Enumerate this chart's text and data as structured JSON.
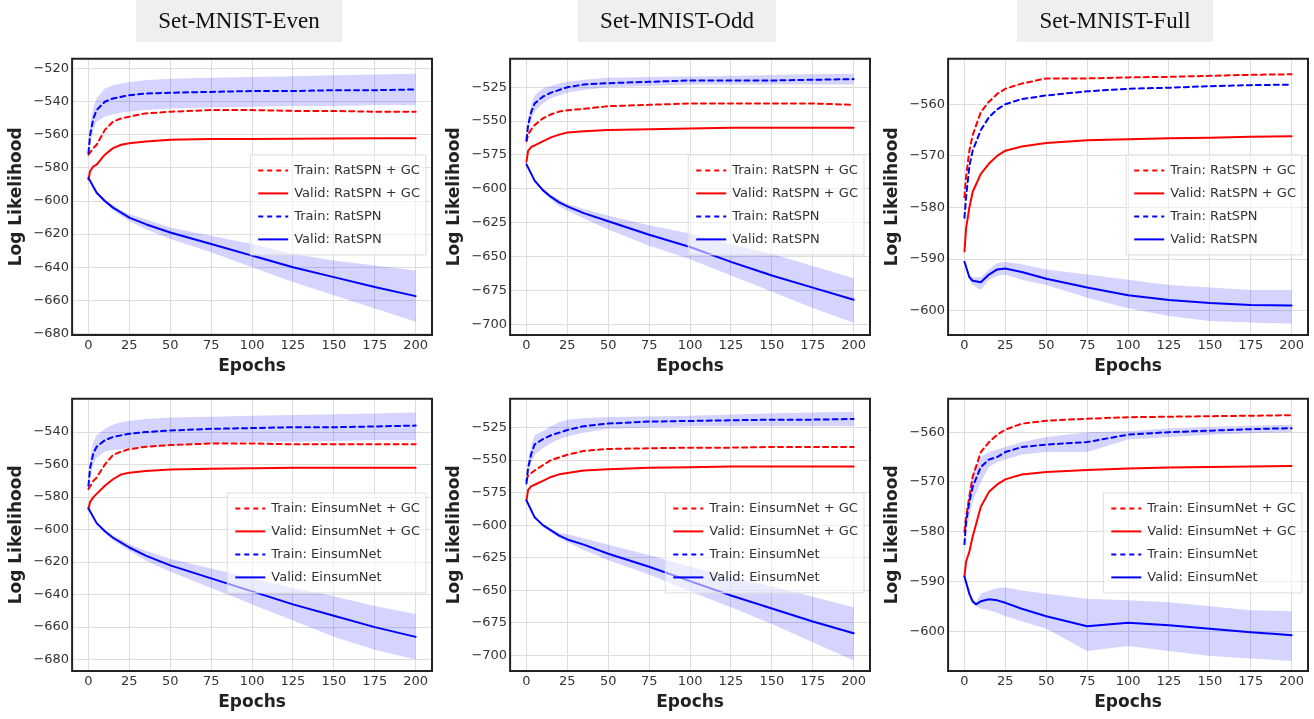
{
  "chart_data": [
    {
      "type": "line",
      "title": "Set-MNIST-Even",
      "xlabel": "Epochs",
      "ylabel": "Log Likelihood",
      "xlim": [
        -10,
        210
      ],
      "ylim": [
        -681,
        -514
      ],
      "xticks": [
        0,
        25,
        50,
        75,
        100,
        125,
        150,
        175,
        200
      ],
      "yticks": [
        -680,
        -660,
        -640,
        -620,
        -600,
        -580,
        -560,
        -540,
        -520
      ],
      "grid": true,
      "legend": "right",
      "series": [
        {
          "name": "Train: RatSPN + GC",
          "color": "#ff0000",
          "line_style": "dashed",
          "x": [
            0,
            3,
            5,
            10,
            15,
            20,
            25,
            35,
            50,
            75,
            100,
            125,
            150,
            175,
            200
          ],
          "values": [
            -572,
            -568,
            -566,
            -557,
            -552,
            -550,
            -549,
            -547,
            -546,
            -545,
            -545,
            -545.5,
            -545.5,
            -546,
            -546
          ]
        },
        {
          "name": "Valid: RatSPN + GC",
          "color": "#ff0000",
          "line_style": "solid",
          "x": [
            0,
            1,
            3,
            5,
            10,
            15,
            20,
            25,
            35,
            50,
            75,
            100,
            125,
            150,
            175,
            200
          ],
          "values": [
            -587,
            -582,
            -579,
            -578,
            -572,
            -568,
            -566,
            -565,
            -564,
            -563,
            -562.5,
            -562.5,
            -562.3,
            -562.2,
            -562,
            -562
          ]
        },
        {
          "name": "Train: RatSPN",
          "color": "#0000ff",
          "line_style": "dashed",
          "x": [
            0,
            1,
            3,
            5,
            10,
            15,
            20,
            25,
            35,
            50,
            75,
            100,
            125,
            150,
            175,
            200
          ],
          "values": [
            -571,
            -560,
            -550,
            -545,
            -540,
            -538,
            -537,
            -536,
            -535,
            -534.5,
            -534,
            -533.5,
            -533.5,
            -533,
            -533,
            -532.5
          ],
          "lower": [
            -573,
            -566,
            -557,
            -552,
            -549,
            -547.5,
            -546.5,
            -546,
            -545,
            -544,
            -543.5,
            -543,
            -542.5,
            -542.5,
            -542,
            -542
          ],
          "upper": [
            -569,
            -554,
            -543,
            -538,
            -532,
            -530,
            -529,
            -528,
            -527,
            -526,
            -525.5,
            -525,
            -524.5,
            -524,
            -523.5,
            -523
          ]
        },
        {
          "name": "Valid: RatSPN",
          "color": "#0000ff",
          "line_style": "solid",
          "x": [
            0,
            5,
            10,
            15,
            20,
            25,
            35,
            50,
            75,
            100,
            125,
            150,
            175,
            200
          ],
          "values": [
            -586,
            -595,
            -600,
            -604,
            -607,
            -610,
            -614,
            -619,
            -626,
            -633,
            -640,
            -646,
            -652,
            -657.5
          ],
          "lower": [
            -586.5,
            -595.5,
            -601,
            -605.5,
            -609,
            -612,
            -617,
            -623,
            -631,
            -640,
            -649,
            -657,
            -665,
            -673
          ],
          "upper": [
            -585.5,
            -594.5,
            -599,
            -602.5,
            -605.5,
            -608,
            -611,
            -616,
            -621,
            -626,
            -632,
            -636,
            -639,
            -642
          ]
        }
      ]
    },
    {
      "type": "line",
      "title": "Set-MNIST-Odd",
      "xlabel": "Epochs",
      "ylabel": "Log Likelihood",
      "xlim": [
        -10,
        210
      ],
      "ylim": [
        -708,
        -504
      ],
      "xticks": [
        0,
        25,
        50,
        75,
        100,
        125,
        150,
        175,
        200
      ],
      "yticks": [
        -700,
        -675,
        -650,
        -625,
        -600,
        -575,
        -550,
        -525
      ],
      "grid": true,
      "legend": "right",
      "series": [
        {
          "name": "Train: RatSPN + GC",
          "color": "#ff0000",
          "line_style": "dashed",
          "x": [
            0,
            1,
            3,
            5,
            10,
            15,
            20,
            25,
            35,
            50,
            75,
            100,
            125,
            150,
            175,
            200
          ],
          "values": [
            -565,
            -560,
            -556,
            -553,
            -548,
            -545,
            -543,
            -542,
            -541,
            -539,
            -538,
            -537,
            -537,
            -537,
            -537,
            -538
          ]
        },
        {
          "name": "Valid: RatSPN + GC",
          "color": "#ff0000",
          "line_style": "solid",
          "x": [
            0,
            1,
            3,
            5,
            10,
            15,
            20,
            25,
            35,
            50,
            75,
            100,
            125,
            150,
            175,
            200
          ],
          "values": [
            -580,
            -572,
            -569,
            -568,
            -565,
            -562,
            -560,
            -558.5,
            -557.5,
            -556.5,
            -556,
            -555.5,
            -555,
            -555,
            -555,
            -555
          ]
        },
        {
          "name": "Train: RatSPN",
          "color": "#0000ff",
          "line_style": "dashed",
          "x": [
            0,
            1,
            3,
            5,
            10,
            15,
            20,
            25,
            35,
            50,
            75,
            100,
            125,
            150,
            175,
            200
          ],
          "values": [
            -564,
            -553,
            -543,
            -537,
            -532,
            -529,
            -527,
            -525,
            -523,
            -522,
            -521,
            -520,
            -520,
            -520,
            -519.5,
            -519
          ],
          "lower": [
            -566,
            -558,
            -549,
            -543,
            -537,
            -533,
            -531,
            -529,
            -527,
            -525,
            -524,
            -523,
            -523,
            -523,
            -523,
            -523
          ],
          "upper": [
            -562,
            -548,
            -537,
            -531,
            -526,
            -524,
            -522,
            -521,
            -519.5,
            -518,
            -517.5,
            -517,
            -516.5,
            -516,
            -515.5,
            -515
          ]
        },
        {
          "name": "Valid: RatSPN",
          "color": "#0000ff",
          "line_style": "solid",
          "x": [
            0,
            5,
            10,
            15,
            20,
            25,
            35,
            50,
            75,
            100,
            125,
            150,
            175,
            200
          ],
          "values": [
            -582,
            -594,
            -601,
            -606,
            -610,
            -613,
            -618,
            -624,
            -634,
            -643,
            -654,
            -664,
            -673,
            -682
          ],
          "lower": [
            -582.5,
            -595,
            -602,
            -608,
            -613,
            -616,
            -622,
            -630,
            -642,
            -652,
            -664,
            -676,
            -688,
            -699
          ],
          "upper": [
            -581.5,
            -593,
            -600,
            -604.5,
            -608,
            -611,
            -615,
            -620,
            -627,
            -633,
            -641,
            -648,
            -657,
            -666
          ]
        }
      ]
    },
    {
      "type": "line",
      "title": "Set-MNIST-Full",
      "xlabel": "Epochs",
      "ylabel": "Log Likelihood",
      "xlim": [
        -10,
        210
      ],
      "ylim": [
        -604.7,
        -551.2
      ],
      "xticks": [
        0,
        25,
        50,
        75,
        100,
        125,
        150,
        175,
        200
      ],
      "yticks": [
        -600,
        -590,
        -580,
        -570,
        -560
      ],
      "grid": true,
      "legend": "right",
      "series": [
        {
          "name": "Train: RatSPN + GC",
          "color": "#ff0000",
          "line_style": "dashed",
          "x": [
            0,
            1,
            3,
            5,
            10,
            15,
            20,
            25,
            35,
            50,
            75,
            100,
            125,
            150,
            175,
            200
          ],
          "values": [
            -578,
            -574,
            -569,
            -566,
            -561.5,
            -559.5,
            -558,
            -557,
            -556,
            -555,
            -555,
            -554.8,
            -554.7,
            -554.5,
            -554.3,
            -554.2
          ]
        },
        {
          "name": "Valid: RatSPN + GC",
          "color": "#ff0000",
          "line_style": "solid",
          "x": [
            0,
            1,
            3,
            5,
            10,
            15,
            20,
            25,
            35,
            50,
            75,
            100,
            125,
            150,
            175,
            200
          ],
          "values": [
            -588.5,
            -584,
            -580,
            -577,
            -573.5,
            -571.5,
            -570,
            -569,
            -568.2,
            -567.5,
            -567,
            -566.8,
            -566.6,
            -566.5,
            -566.3,
            -566.2
          ]
        },
        {
          "name": "Train: RatSPN",
          "color": "#0000ff",
          "line_style": "dashed",
          "x": [
            0,
            1,
            3,
            5,
            10,
            15,
            20,
            25,
            35,
            50,
            75,
            100,
            125,
            150,
            175,
            200
          ],
          "values": [
            -582,
            -578,
            -572,
            -569,
            -565,
            -562.5,
            -561,
            -560,
            -559,
            -558.3,
            -557.5,
            -557,
            -556.8,
            -556.5,
            -556.3,
            -556.2
          ]
        },
        {
          "name": "Valid: RatSPN",
          "color": "#0000ff",
          "line_style": "solid",
          "x": [
            0,
            3,
            5,
            10,
            15,
            20,
            25,
            35,
            50,
            75,
            100,
            125,
            150,
            175,
            200
          ],
          "values": [
            -590.5,
            -593.5,
            -594.2,
            -594.5,
            -593,
            -592,
            -591.8,
            -592.5,
            -593.8,
            -595.5,
            -597,
            -597.9,
            -598.5,
            -598.9,
            -599
          ],
          "lower": [
            -590.5,
            -594.2,
            -595,
            -596,
            -594,
            -593.2,
            -593,
            -594,
            -595,
            -597.5,
            -599.5,
            -601,
            -602,
            -602.3,
            -602.5
          ],
          "upper": [
            -590.5,
            -593,
            -593.5,
            -593.5,
            -592,
            -590.8,
            -590.5,
            -591,
            -592,
            -593,
            -594,
            -595,
            -595.5,
            -596,
            -596
          ]
        }
      ]
    },
    {
      "type": "line",
      "xlabel": "Epochs",
      "ylabel": "Log Likelihood",
      "xlim": [
        -10,
        210
      ],
      "ylim": [
        -687,
        -519.5
      ],
      "xticks": [
        0,
        25,
        50,
        75,
        100,
        125,
        150,
        175,
        200
      ],
      "yticks": [
        -680,
        -660,
        -640,
        -620,
        -600,
        -580,
        -560,
        -540
      ],
      "grid": true,
      "legend": "right",
      "series": [
        {
          "name": "Train: EinsumNet + GC",
          "color": "#ff0000",
          "line_style": "dashed",
          "x": [
            0,
            3,
            5,
            10,
            15,
            20,
            25,
            35,
            50,
            75,
            100,
            125,
            150,
            175,
            200
          ],
          "values": [
            -575,
            -570,
            -568,
            -560,
            -554,
            -552,
            -550.5,
            -549,
            -548,
            -547,
            -547,
            -547.5,
            -547.5,
            -547.5,
            -547.5
          ]
        },
        {
          "name": "Valid: EinsumNet + GC",
          "color": "#ff0000",
          "line_style": "solid",
          "x": [
            0,
            1,
            3,
            5,
            10,
            15,
            20,
            25,
            35,
            50,
            75,
            100,
            125,
            150,
            175,
            200
          ],
          "values": [
            -587,
            -583,
            -580,
            -578,
            -573,
            -569,
            -566,
            -565,
            -564,
            -563,
            -562.5,
            -562.2,
            -562,
            -562,
            -562,
            -562
          ]
        },
        {
          "name": "Train: EinsumNet",
          "color": "#0000ff",
          "line_style": "dashed",
          "x": [
            0,
            1,
            3,
            5,
            10,
            15,
            20,
            25,
            35,
            50,
            75,
            100,
            125,
            150,
            175,
            200
          ],
          "values": [
            -573,
            -562,
            -553,
            -549,
            -545,
            -543,
            -542,
            -541,
            -540,
            -539,
            -538,
            -537.5,
            -537,
            -537,
            -536.5,
            -536
          ],
          "lower": [
            -575,
            -568,
            -560,
            -556,
            -552,
            -551,
            -550.5,
            -550,
            -549,
            -548,
            -547,
            -546,
            -546,
            -545.5,
            -545,
            -545
          ],
          "upper": [
            -571,
            -556,
            -546,
            -542,
            -538,
            -535.5,
            -534,
            -533,
            -532,
            -531,
            -530.5,
            -530,
            -529.5,
            -529,
            -528.5,
            -528
          ]
        },
        {
          "name": "Valid: EinsumNet",
          "color": "#0000ff",
          "line_style": "solid",
          "x": [
            0,
            5,
            10,
            15,
            20,
            25,
            35,
            50,
            75,
            100,
            125,
            150,
            175,
            200
          ],
          "values": [
            -587,
            -596,
            -601,
            -605,
            -608,
            -611,
            -616,
            -622,
            -630,
            -638,
            -646,
            -653,
            -660,
            -666
          ],
          "lower": [
            -587.5,
            -596.5,
            -602,
            -606.5,
            -610,
            -613,
            -619,
            -626,
            -636,
            -646,
            -656,
            -666,
            -674,
            -680
          ],
          "upper": [
            -586.5,
            -595.5,
            -600,
            -603.5,
            -606,
            -609,
            -613,
            -618,
            -624,
            -630,
            -636,
            -641,
            -647,
            -652
          ]
        }
      ]
    },
    {
      "type": "line",
      "xlabel": "Epochs",
      "ylabel": "Log Likelihood",
      "xlim": [
        -10,
        210
      ],
      "ylim": [
        -712,
        -503
      ],
      "xticks": [
        0,
        25,
        50,
        75,
        100,
        125,
        150,
        175,
        200
      ],
      "yticks": [
        -700,
        -675,
        -650,
        -625,
        -600,
        -575,
        -550,
        -525
      ],
      "grid": true,
      "legend": "right",
      "series": [
        {
          "name": "Train: EinsumNet + GC",
          "color": "#ff0000",
          "line_style": "dashed",
          "x": [
            0,
            1,
            3,
            5,
            10,
            15,
            20,
            25,
            35,
            50,
            75,
            100,
            125,
            150,
            175,
            200
          ],
          "values": [
            -565.5,
            -562,
            -560,
            -558,
            -554,
            -550,
            -548,
            -546,
            -543,
            -541.5,
            -541,
            -540.5,
            -540.5,
            -540,
            -540,
            -540
          ]
        },
        {
          "name": "Valid: EinsumNet + GC",
          "color": "#ff0000",
          "line_style": "solid",
          "x": [
            0,
            1,
            3,
            5,
            10,
            15,
            20,
            25,
            35,
            50,
            75,
            100,
            125,
            150,
            175,
            200
          ],
          "values": [
            -581,
            -573,
            -570,
            -569,
            -566,
            -563,
            -561,
            -560,
            -558,
            -557,
            -556,
            -555.5,
            -555,
            -555,
            -555,
            -555
          ]
        },
        {
          "name": "Train: EinsumNet",
          "color": "#0000ff",
          "line_style": "dashed",
          "x": [
            0,
            1,
            3,
            5,
            10,
            15,
            20,
            25,
            35,
            50,
            75,
            100,
            125,
            150,
            175,
            200
          ],
          "values": [
            -568,
            -556,
            -545,
            -538,
            -534,
            -531,
            -529,
            -527,
            -524,
            -522,
            -520.5,
            -520,
            -519.5,
            -519,
            -519,
            -518.5
          ],
          "lower": [
            -569,
            -562,
            -552,
            -546,
            -541,
            -537,
            -534,
            -532,
            -529,
            -526,
            -525,
            -524,
            -524,
            -524,
            -524,
            -524
          ],
          "upper": [
            -565,
            -550,
            -538,
            -531,
            -528,
            -524,
            -521,
            -519,
            -518,
            -517,
            -516.5,
            -516,
            -515,
            -514,
            -513.5,
            -513
          ]
        },
        {
          "name": "Valid: EinsumNet",
          "color": "#0000ff",
          "line_style": "solid",
          "x": [
            0,
            5,
            10,
            15,
            20,
            25,
            35,
            50,
            75,
            100,
            125,
            150,
            175,
            200
          ],
          "values": [
            -581,
            -594,
            -600,
            -604,
            -608,
            -611,
            -615,
            -622,
            -632,
            -643,
            -654,
            -664,
            -674,
            -683
          ],
          "lower": [
            -581.5,
            -594.5,
            -601,
            -605.5,
            -610,
            -613,
            -619,
            -627,
            -638,
            -651,
            -663,
            -676,
            -690,
            -704
          ],
          "upper": [
            -580.5,
            -593.5,
            -599,
            -602.5,
            -606,
            -607,
            -610,
            -615,
            -623,
            -632,
            -640,
            -647,
            -655,
            -663
          ]
        }
      ]
    },
    {
      "type": "line",
      "xlabel": "Epochs",
      "ylabel": "Log Likelihood",
      "xlim": [
        -10,
        210
      ],
      "ylim": [
        -608,
        -553.3
      ],
      "xticks": [
        0,
        25,
        50,
        75,
        100,
        125,
        150,
        175,
        200
      ],
      "yticks": [
        -600,
        -590,
        -580,
        -570,
        -560
      ],
      "grid": true,
      "legend": "right",
      "series": [
        {
          "name": "Train: EinsumNet + GC",
          "color": "#ff0000",
          "line_style": "dashed",
          "x": [
            0,
            1,
            3,
            5,
            10,
            15,
            20,
            25,
            35,
            50,
            75,
            100,
            125,
            150,
            175,
            200
          ],
          "values": [
            -580,
            -577,
            -573,
            -569,
            -564,
            -562,
            -560.5,
            -559.5,
            -558.3,
            -557.7,
            -557.3,
            -557,
            -556.9,
            -556.8,
            -556.7,
            -556.6
          ]
        },
        {
          "name": "Valid: EinsumNet + GC",
          "color": "#ff0000",
          "line_style": "solid",
          "x": [
            0,
            1,
            3,
            5,
            10,
            15,
            20,
            25,
            35,
            50,
            75,
            100,
            125,
            150,
            175,
            200
          ],
          "values": [
            -589,
            -586,
            -584,
            -581,
            -575,
            -572,
            -570.5,
            -569.5,
            -568.5,
            -568,
            -567.6,
            -567.3,
            -567.1,
            -567,
            -566.9,
            -566.8
          ]
        },
        {
          "name": "Train: EinsumNet",
          "color": "#0000ff",
          "line_style": "dashed",
          "x": [
            0,
            1,
            3,
            5,
            10,
            15,
            20,
            25,
            35,
            50,
            75,
            100,
            125,
            150,
            175,
            200
          ],
          "values": [
            -582.5,
            -578,
            -574,
            -571,
            -567,
            -565.5,
            -565,
            -564,
            -563,
            -562.5,
            -562,
            -560.5,
            -560,
            -559.7,
            -559.4,
            -559.2
          ],
          "lower": [
            -583,
            -580,
            -577,
            -574,
            -570,
            -567,
            -566,
            -565.5,
            -564.5,
            -564,
            -564,
            -561.5,
            -561,
            -560.5,
            -560.2,
            -560
          ],
          "upper": [
            -582,
            -576,
            -571,
            -568,
            -565,
            -564,
            -563.5,
            -563,
            -562,
            -561,
            -560,
            -559.8,
            -559.2,
            -558.9,
            -558.7,
            -558.5
          ]
        },
        {
          "name": "Valid: EinsumNet",
          "color": "#0000ff",
          "line_style": "solid",
          "x": [
            0,
            3,
            5,
            7,
            10,
            15,
            20,
            25,
            35,
            50,
            75,
            100,
            125,
            150,
            175,
            200
          ],
          "values": [
            -589,
            -592.5,
            -594,
            -594.6,
            -594,
            -593.6,
            -593.8,
            -594.3,
            -595.5,
            -597,
            -599,
            -598.3,
            -598.8,
            -599.5,
            -600.2,
            -600.8
          ],
          "lower": [
            -589,
            -593,
            -594.5,
            -595,
            -595.5,
            -595.8,
            -596.3,
            -597,
            -598,
            -599.5,
            -604,
            -603,
            -604,
            -605,
            -605.5,
            -606
          ],
          "upper": [
            -589,
            -592,
            -593.5,
            -594.2,
            -592.5,
            -591.8,
            -591.3,
            -591.2,
            -591.8,
            -592.5,
            -593.5,
            -593.8,
            -594.2,
            -595,
            -595.8,
            -596
          ]
        }
      ]
    }
  ]
}
